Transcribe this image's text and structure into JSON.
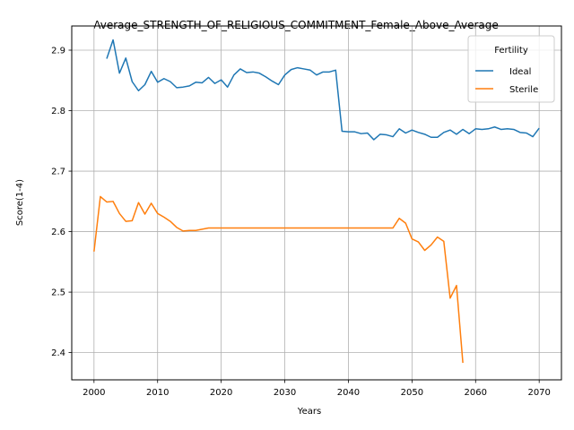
{
  "chart_data": {
    "type": "line",
    "title": "Average_STRENGTH_OF_RELIGIOUS_COMMITMENT_Female_Above_Average",
    "xlabel": "Years",
    "ylabel": "Score(1-4)",
    "xlim": [
      1996.5,
      2073.5
    ],
    "ylim": [
      2.355,
      2.94
    ],
    "xticks": [
      2000,
      2010,
      2020,
      2030,
      2040,
      2050,
      2060,
      2070
    ],
    "yticks": [
      2.4,
      2.5,
      2.6,
      2.7,
      2.8,
      2.9
    ],
    "grid": true,
    "legend": {
      "title": "Fertility",
      "position": "top-right"
    },
    "series": [
      {
        "name": "Ideal",
        "color": "#1f77b4",
        "x": [
          2002,
          2003,
          2004,
          2005,
          2006,
          2007,
          2008,
          2009,
          2010,
          2011,
          2012,
          2013,
          2014,
          2015,
          2016,
          2017,
          2018,
          2019,
          2020,
          2021,
          2022,
          2023,
          2024,
          2025,
          2026,
          2027,
          2028,
          2029,
          2030,
          2031,
          2032,
          2033,
          2034,
          2035,
          2036,
          2037,
          2038,
          2039,
          2040,
          2041,
          2042,
          2043,
          2044,
          2045,
          2046,
          2047,
          2048,
          2049,
          2050,
          2051,
          2052,
          2053,
          2054,
          2055,
          2056,
          2057,
          2058,
          2059,
          2060,
          2061,
          2062,
          2063,
          2064,
          2065,
          2066,
          2067,
          2068,
          2069,
          2070
        ],
        "values": [
          2.886,
          2.917,
          2.862,
          2.887,
          2.848,
          2.833,
          2.843,
          2.865,
          2.847,
          2.853,
          2.848,
          2.838,
          2.839,
          2.841,
          2.847,
          2.846,
          2.855,
          2.845,
          2.851,
          2.839,
          2.859,
          2.869,
          2.863,
          2.864,
          2.862,
          2.856,
          2.849,
          2.843,
          2.859,
          2.868,
          2.871,
          2.869,
          2.867,
          2.859,
          2.864,
          2.864,
          2.867,
          2.766,
          2.765,
          2.765,
          2.762,
          2.763,
          2.752,
          2.761,
          2.76,
          2.757,
          2.77,
          2.763,
          2.768,
          2.764,
          2.761,
          2.756,
          2.756,
          2.764,
          2.768,
          2.761,
          2.769,
          2.762,
          2.77,
          2.769,
          2.77,
          2.773,
          2.769,
          2.77,
          2.769,
          2.764,
          2.763,
          2.757,
          2.771
        ]
      },
      {
        "name": "Sterile",
        "color": "#ff7f0e",
        "x": [
          2000,
          2001,
          2002,
          2003,
          2004,
          2005,
          2006,
          2007,
          2008,
          2009,
          2010,
          2011,
          2012,
          2013,
          2014,
          2015,
          2016,
          2017,
          2018,
          2019,
          2020,
          2021,
          2022,
          2023,
          2024,
          2025,
          2026,
          2027,
          2028,
          2029,
          2030,
          2031,
          2032,
          2033,
          2034,
          2035,
          2036,
          2037,
          2038,
          2039,
          2040,
          2041,
          2042,
          2043,
          2044,
          2045,
          2046,
          2047,
          2048,
          2049,
          2050,
          2051,
          2052,
          2053,
          2054,
          2055,
          2056,
          2057,
          2058
        ],
        "values": [
          2.567,
          2.658,
          2.649,
          2.65,
          2.63,
          2.617,
          2.618,
          2.648,
          2.629,
          2.647,
          2.63,
          2.624,
          2.617,
          2.607,
          2.601,
          2.602,
          2.602,
          2.604,
          2.606,
          2.606,
          2.606,
          2.606,
          2.606,
          2.606,
          2.606,
          2.606,
          2.606,
          2.606,
          2.606,
          2.606,
          2.606,
          2.606,
          2.606,
          2.606,
          2.606,
          2.606,
          2.606,
          2.606,
          2.606,
          2.606,
          2.606,
          2.606,
          2.606,
          2.606,
          2.606,
          2.606,
          2.606,
          2.606,
          2.622,
          2.614,
          2.588,
          2.583,
          2.569,
          2.578,
          2.591,
          2.584,
          2.49,
          2.511,
          2.383
        ]
      }
    ]
  }
}
